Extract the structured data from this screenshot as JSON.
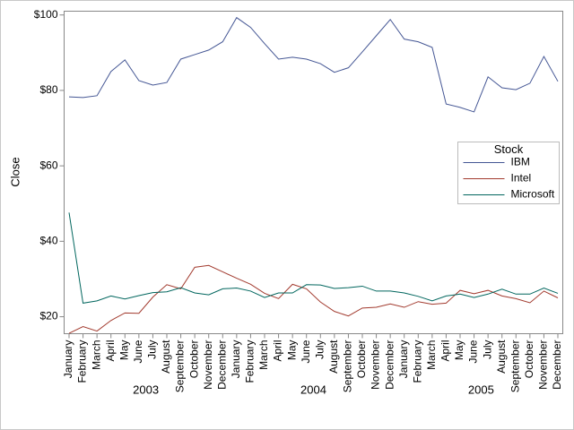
{
  "chart_data": {
    "type": "line",
    "y_label": "Close",
    "categories": [
      "January",
      "February",
      "March",
      "April",
      "May",
      "June",
      "July",
      "August",
      "September",
      "October",
      "November",
      "December",
      "January",
      "February",
      "March",
      "April",
      "May",
      "June",
      "July",
      "August",
      "September",
      "October",
      "November",
      "December",
      "January",
      "February",
      "March",
      "April",
      "May",
      "June",
      "July",
      "August",
      "September",
      "October",
      "November",
      "December"
    ],
    "groups": [
      {
        "label": "2003",
        "start": 0,
        "end": 11
      },
      {
        "label": "2004",
        "start": 12,
        "end": 23
      },
      {
        "label": "2005",
        "start": 24,
        "end": 35
      }
    ],
    "ylim": [
      15.5,
      101
    ],
    "yticks": [
      {
        "value": 20,
        "label": "$20"
      },
      {
        "value": 40,
        "label": "$40"
      },
      {
        "value": 60,
        "label": "$60"
      },
      {
        "value": 80,
        "label": "$80"
      },
      {
        "value": 100,
        "label": "$100"
      }
    ],
    "legend_title": "Stock",
    "legend_position": "right",
    "series": [
      {
        "name": "IBM",
        "color": "#445694",
        "values": [
          78.3,
          78.1,
          78.6,
          85,
          88.1,
          82.6,
          81.4,
          82.1,
          88.3,
          89.5,
          90.7,
          92.9,
          99.3,
          96.7,
          92.4,
          88.3,
          88.8,
          88.3,
          87.1,
          84.8,
          86,
          90.2,
          94.5,
          98.8,
          93.6,
          92.9,
          91.4,
          76.4,
          75.5,
          74.3,
          83.6,
          80.7,
          80.2,
          81.9,
          89,
          82.4
        ]
      },
      {
        "name": "Intel",
        "color": "#a23a2e",
        "values": [
          15.6,
          17.4,
          16.2,
          19,
          21,
          20.9,
          25.2,
          28.5,
          27.4,
          33.1,
          33.6,
          31.9,
          30.2,
          28.6,
          26.2,
          24.8,
          28.6,
          27.4,
          23.9,
          21.4,
          20.2,
          22.3,
          22.5,
          23.4,
          22.5,
          24,
          23.3,
          23.6,
          27,
          26.1,
          27,
          25.5,
          24.8,
          23.7,
          26.8,
          25
        ]
      },
      {
        "name": "Microsoft",
        "color": "#01665e",
        "values": [
          47.6,
          23.6,
          24.2,
          25.5,
          24.7,
          25.6,
          26.4,
          26.6,
          27.7,
          26.3,
          25.8,
          27.4,
          27.6,
          26.8,
          25.1,
          26.3,
          26.3,
          28.5,
          28.4,
          27.5,
          27.7,
          28.1,
          26.8,
          26.8,
          26.3,
          25.4,
          24.2,
          25.5,
          26,
          25.1,
          26,
          27.3,
          26,
          26,
          27.6,
          26.2
        ]
      }
    ]
  }
}
